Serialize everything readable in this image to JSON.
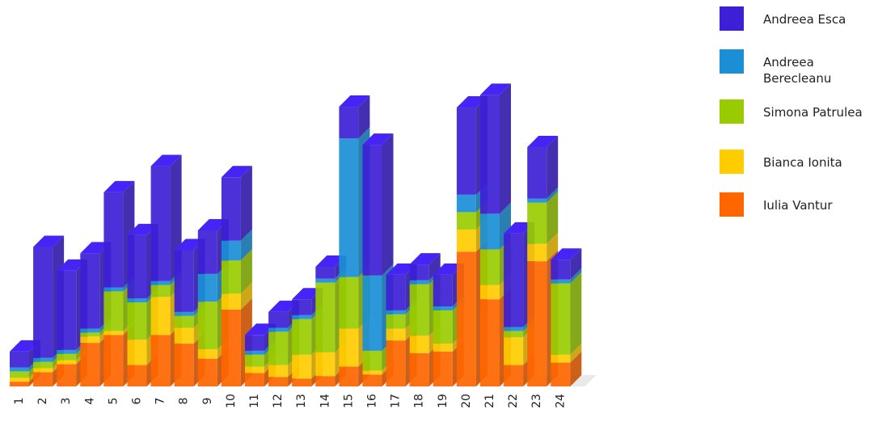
{
  "chart_data": {
    "type": "bar",
    "stacked": true,
    "rendering": "3d-stacked-bar",
    "categories": [
      "1",
      "2",
      "3",
      "4",
      "5",
      "6",
      "7",
      "8",
      "9",
      "10",
      "11",
      "12",
      "13",
      "14",
      "15",
      "16",
      "17",
      "18",
      "19",
      "20",
      "21",
      "22",
      "23",
      "24"
    ],
    "series": [
      {
        "name": "Iulia Vantur",
        "color": "#ff6600",
        "values": [
          6,
          18,
          28,
          55,
          65,
          27,
          65,
          54,
          35,
          97,
          17,
          12,
          10,
          13,
          25,
          15,
          58,
          42,
          44,
          170,
          110,
          27,
          158,
          30
        ]
      },
      {
        "name": "Bianca Ionita",
        "color": "#ffcc00",
        "values": [
          5,
          5,
          5,
          8,
          5,
          32,
          48,
          20,
          12,
          20,
          8,
          15,
          30,
          30,
          48,
          5,
          15,
          22,
          10,
          28,
          18,
          35,
          22,
          10
        ]
      },
      {
        "name": "Simona Patrulea",
        "color": "#99cc00",
        "values": [
          8,
          8,
          8,
          5,
          50,
          47,
          15,
          15,
          60,
          42,
          15,
          42,
          45,
          88,
          65,
          25,
          18,
          65,
          42,
          22,
          45,
          8,
          52,
          90
        ]
      },
      {
        "name": "Andreea Berecleanu",
        "color": "#1a8fd6",
        "values": [
          5,
          5,
          5,
          5,
          5,
          5,
          5,
          5,
          35,
          25,
          5,
          5,
          5,
          5,
          175,
          95,
          5,
          5,
          5,
          22,
          45,
          5,
          5,
          5
        ]
      },
      {
        "name": "Andreea Esca",
        "color": "#3d1fd6",
        "values": [
          20,
          140,
          100,
          95,
          120,
          80,
          145,
          78,
          55,
          80,
          20,
          20,
          20,
          15,
          40,
          165,
          45,
          20,
          40,
          110,
          150,
          118,
          65,
          25
        ]
      }
    ],
    "legend_position": "right",
    "grid": false
  }
}
